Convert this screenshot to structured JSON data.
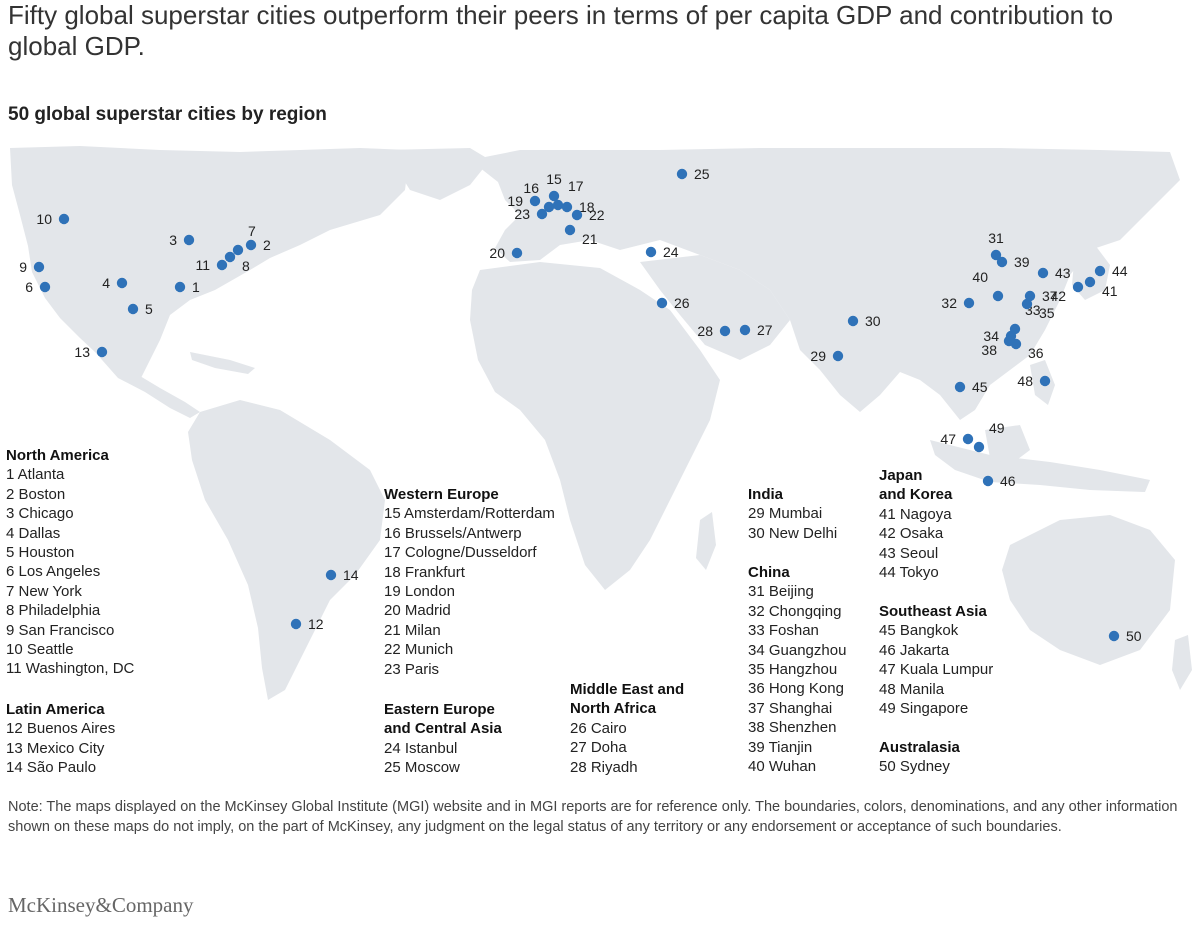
{
  "title": "Fifty global superstar cities outperform their peers in terms of per capita GDP and contribution to global GDP.",
  "subtitle": "50 global superstar cities by region",
  "map": {
    "land_color": "#e3e6ea",
    "marker_color": "#2f72b8"
  },
  "cities": [
    {
      "n": "1",
      "name": "Atlanta"
    },
    {
      "n": "2",
      "name": "Boston"
    },
    {
      "n": "3",
      "name": "Chicago"
    },
    {
      "n": "4",
      "name": "Dallas"
    },
    {
      "n": "5",
      "name": "Houston"
    },
    {
      "n": "6",
      "name": "Los Angeles"
    },
    {
      "n": "7",
      "name": "New York"
    },
    {
      "n": "8",
      "name": "Philadelphia"
    },
    {
      "n": "9",
      "name": "San Francisco"
    },
    {
      "n": "10",
      "name": "Seattle"
    },
    {
      "n": "11",
      "name": "Washington, DC"
    },
    {
      "n": "12",
      "name": "Buenos Aires"
    },
    {
      "n": "13",
      "name": "Mexico City"
    },
    {
      "n": "14",
      "name": "São Paulo"
    },
    {
      "n": "15",
      "name": "Amsterdam/Rotterdam"
    },
    {
      "n": "16",
      "name": "Brussels/Antwerp"
    },
    {
      "n": "17",
      "name": "Cologne/Dusseldorf"
    },
    {
      "n": "18",
      "name": "Frankfurt"
    },
    {
      "n": "19",
      "name": "London"
    },
    {
      "n": "20",
      "name": "Madrid"
    },
    {
      "n": "21",
      "name": "Milan"
    },
    {
      "n": "22",
      "name": "Munich"
    },
    {
      "n": "23",
      "name": "Paris"
    },
    {
      "n": "24",
      "name": "Istanbul"
    },
    {
      "n": "25",
      "name": "Moscow"
    },
    {
      "n": "26",
      "name": "Cairo"
    },
    {
      "n": "27",
      "name": "Doha"
    },
    {
      "n": "28",
      "name": "Riyadh"
    },
    {
      "n": "29",
      "name": "Mumbai"
    },
    {
      "n": "30",
      "name": "New Delhi"
    },
    {
      "n": "31",
      "name": "Beijing"
    },
    {
      "n": "32",
      "name": "Chongqing"
    },
    {
      "n": "33",
      "name": "Foshan"
    },
    {
      "n": "34",
      "name": "Guangzhou"
    },
    {
      "n": "35",
      "name": "Hangzhou"
    },
    {
      "n": "36",
      "name": "Hong Kong"
    },
    {
      "n": "37",
      "name": "Shanghai"
    },
    {
      "n": "38",
      "name": "Shenzhen"
    },
    {
      "n": "39",
      "name": "Tianjin"
    },
    {
      "n": "40",
      "name": "Wuhan"
    },
    {
      "n": "41",
      "name": "Nagoya"
    },
    {
      "n": "42",
      "name": "Osaka"
    },
    {
      "n": "43",
      "name": "Seoul"
    },
    {
      "n": "44",
      "name": "Tokyo"
    },
    {
      "n": "45",
      "name": "Bangkok"
    },
    {
      "n": "46",
      "name": "Jakarta"
    },
    {
      "n": "47",
      "name": "Kuala Lumpur"
    },
    {
      "n": "48",
      "name": "Manila"
    },
    {
      "n": "49",
      "name": "Singapore"
    },
    {
      "n": "50",
      "name": "Sydney"
    }
  ],
  "regions": [
    {
      "heading": [
        "North America"
      ],
      "items": [
        "1 Atlanta",
        "2 Boston",
        "3 Chicago",
        "4 Dallas",
        "5 Houston",
        "6 Los Angeles",
        "7 New York",
        "8 Philadelphia",
        "9 San Francisco",
        "10 Seattle",
        "11 Washington, DC"
      ]
    },
    {
      "heading": [
        "Latin America"
      ],
      "items": [
        "12 Buenos Aires",
        "13 Mexico City",
        "14 São Paulo"
      ]
    },
    {
      "heading": [
        "Western Europe"
      ],
      "items": [
        "15 Amsterdam/Rotterdam",
        "16 Brussels/Antwerp",
        "17 Cologne/Dusseldorf",
        "18 Frankfurt",
        "19 London",
        "20 Madrid",
        "21 Milan",
        "22 Munich",
        "23 Paris"
      ]
    },
    {
      "heading": [
        "Eastern Europe",
        "and Central Asia"
      ],
      "items": [
        "24 Istanbul",
        "25 Moscow"
      ]
    },
    {
      "heading": [
        "Middle East and",
        "North Africa"
      ],
      "items": [
        "26 Cairo",
        "27 Doha",
        "28 Riyadh"
      ]
    },
    {
      "heading": [
        "India"
      ],
      "items": [
        "29 Mumbai",
        "30 New Delhi"
      ]
    },
    {
      "heading": [
        "China"
      ],
      "items": [
        "31 Beijing",
        "32 Chongqing",
        "33 Foshan",
        "34 Guangzhou",
        "35 Hangzhou",
        "36 Hong Kong",
        "37 Shanghai",
        "38 Shenzhen",
        "39 Tianjin",
        "40 Wuhan"
      ]
    },
    {
      "heading": [
        "Japan",
        "and Korea"
      ],
      "items": [
        "41 Nagoya",
        "42 Osaka",
        "43 Seoul",
        "44 Tokyo"
      ]
    },
    {
      "heading": [
        "Southeast Asia"
      ],
      "items": [
        "45 Bangkok",
        "46 Jakarta",
        "47 Kuala Lumpur",
        "48 Manila",
        "49 Singapore"
      ]
    },
    {
      "heading": [
        "Australasia"
      ],
      "items": [
        "50 Sydney"
      ]
    }
  ],
  "note": "Note: The maps displayed on the McKinsey Global Institute (MGI) website and in MGI reports are for reference only. The boundaries, colors, denominations, and any other information shown on these maps do not imply, on the part of McKinsey, any judgment on the legal status of any territory or any endorsement or acceptance of such boundaries.",
  "logo": "McKinsey&Company"
}
